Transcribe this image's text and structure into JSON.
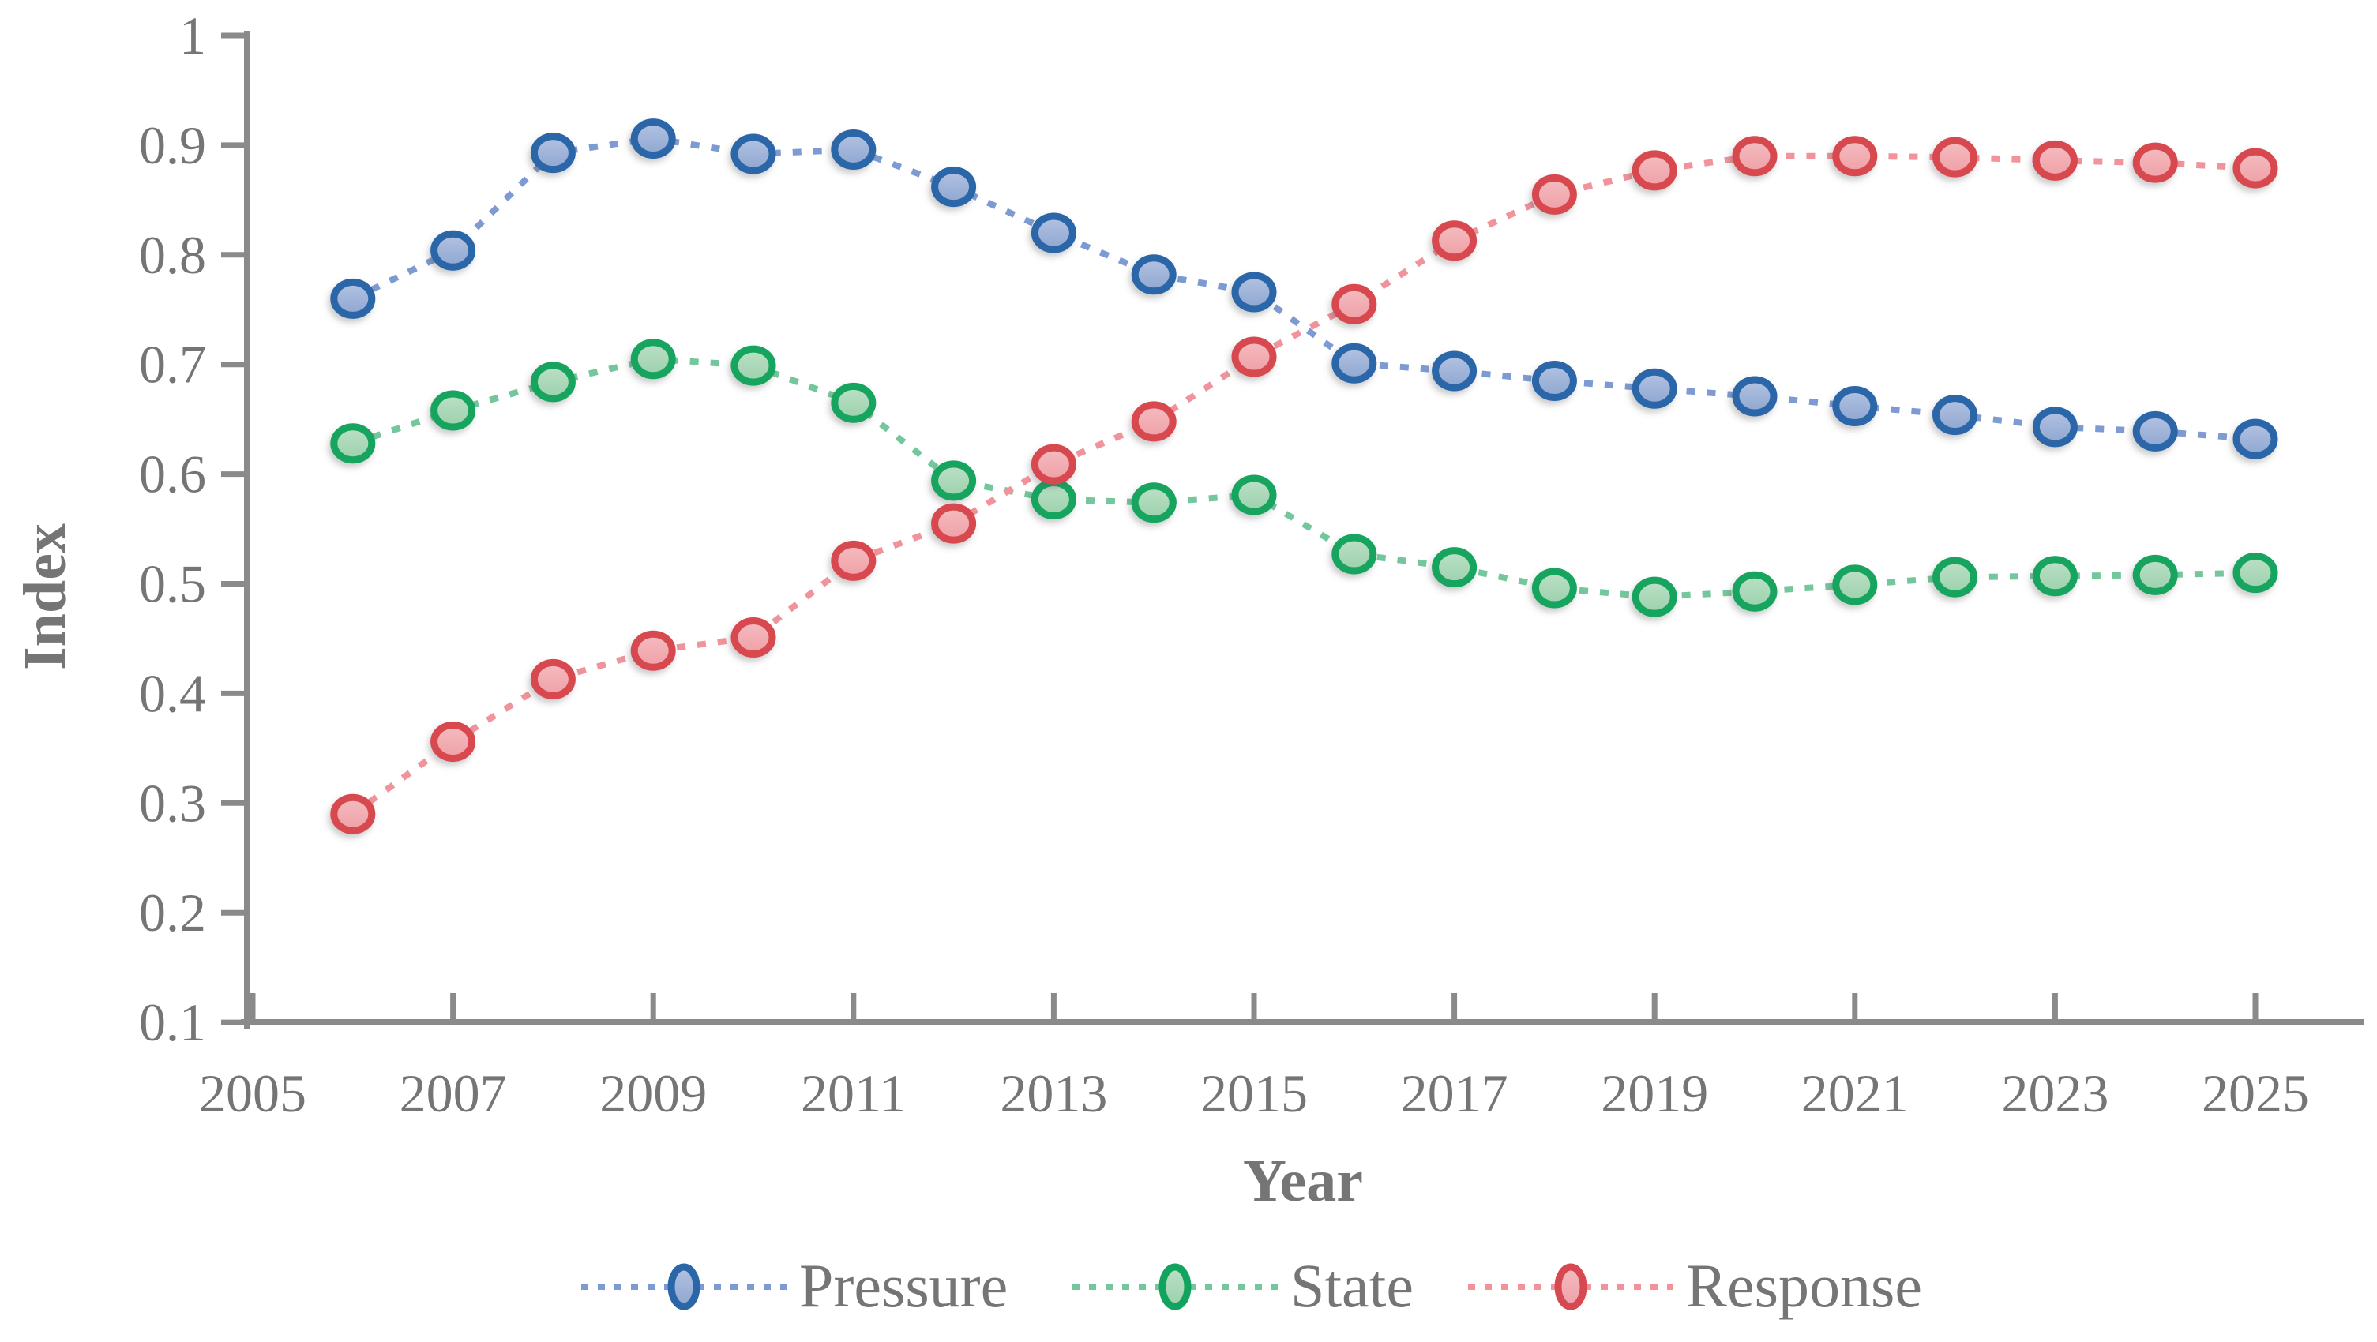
{
  "figure": {
    "background": "#ffffff"
  },
  "axes": {
    "xlabel": "Year",
    "ylabel": "Index",
    "xtick_labels": [
      "2005",
      "2007",
      "2009",
      "2011",
      "2013",
      "2015",
      "2017",
      "2019",
      "2021",
      "2023",
      "2025"
    ],
    "ytick_labels": [
      "0.1",
      "0.2",
      "0.3",
      "0.4",
      "0.5",
      "0.6",
      "0.7",
      "0.8",
      "0.9",
      "1"
    ],
    "axis_color": "#8a8a8a",
    "text_color": "#757575"
  },
  "legend": {
    "items": [
      "Pressure",
      "State",
      "Response"
    ]
  },
  "chart_data": {
    "type": "line",
    "title": "",
    "xlabel": "Year",
    "ylabel": "Index",
    "line_style": "dotted",
    "marker": "circle",
    "grid": false,
    "legend_position": "bottom",
    "xlim": [
      2005,
      2026
    ],
    "ylim": [
      0.1,
      1
    ],
    "xticks": [
      2005,
      2007,
      2009,
      2011,
      2013,
      2015,
      2017,
      2019,
      2021,
      2023,
      2025
    ],
    "yticks": [
      0.1,
      0.2,
      0.3,
      0.4,
      0.5,
      0.6,
      0.7,
      0.8,
      0.9,
      1
    ],
    "x": [
      2006,
      2007,
      2008,
      2009,
      2010,
      2011,
      2012,
      2013,
      2014,
      2015,
      2016,
      2017,
      2018,
      2019,
      2020,
      2021,
      2022,
      2023,
      2024,
      2025
    ],
    "series": [
      {
        "name": "Pressure",
        "ring_color": "#2b66a8",
        "fill_color": "#8ea6d0",
        "fill_light": "#b3c3e2",
        "line_color": "#7d9bd2",
        "values": [
          0.76,
          0.804,
          0.893,
          0.906,
          0.892,
          0.896,
          0.862,
          0.82,
          0.782,
          0.766,
          0.701,
          0.694,
          0.685,
          0.678,
          0.671,
          0.662,
          0.654,
          0.643,
          0.639,
          0.632
        ]
      },
      {
        "name": "State",
        "ring_color": "#12a45e",
        "fill_color": "#9bd1ac",
        "fill_light": "#bce0c6",
        "line_color": "#74c79c",
        "values": [
          0.628,
          0.658,
          0.684,
          0.705,
          0.699,
          0.665,
          0.594,
          0.577,
          0.574,
          0.581,
          0.527,
          0.515,
          0.496,
          0.488,
          0.493,
          0.499,
          0.506,
          0.507,
          0.508,
          0.51
        ]
      },
      {
        "name": "Response",
        "ring_color": "#d74950",
        "fill_color": "#efa0a6",
        "fill_light": "#f4bcc0",
        "line_color": "#f0939b",
        "values": [
          0.29,
          0.356,
          0.413,
          0.439,
          0.451,
          0.521,
          0.555,
          0.609,
          0.648,
          0.707,
          0.755,
          0.813,
          0.855,
          0.877,
          0.89,
          0.89,
          0.889,
          0.886,
          0.884,
          0.879
        ]
      }
    ]
  }
}
